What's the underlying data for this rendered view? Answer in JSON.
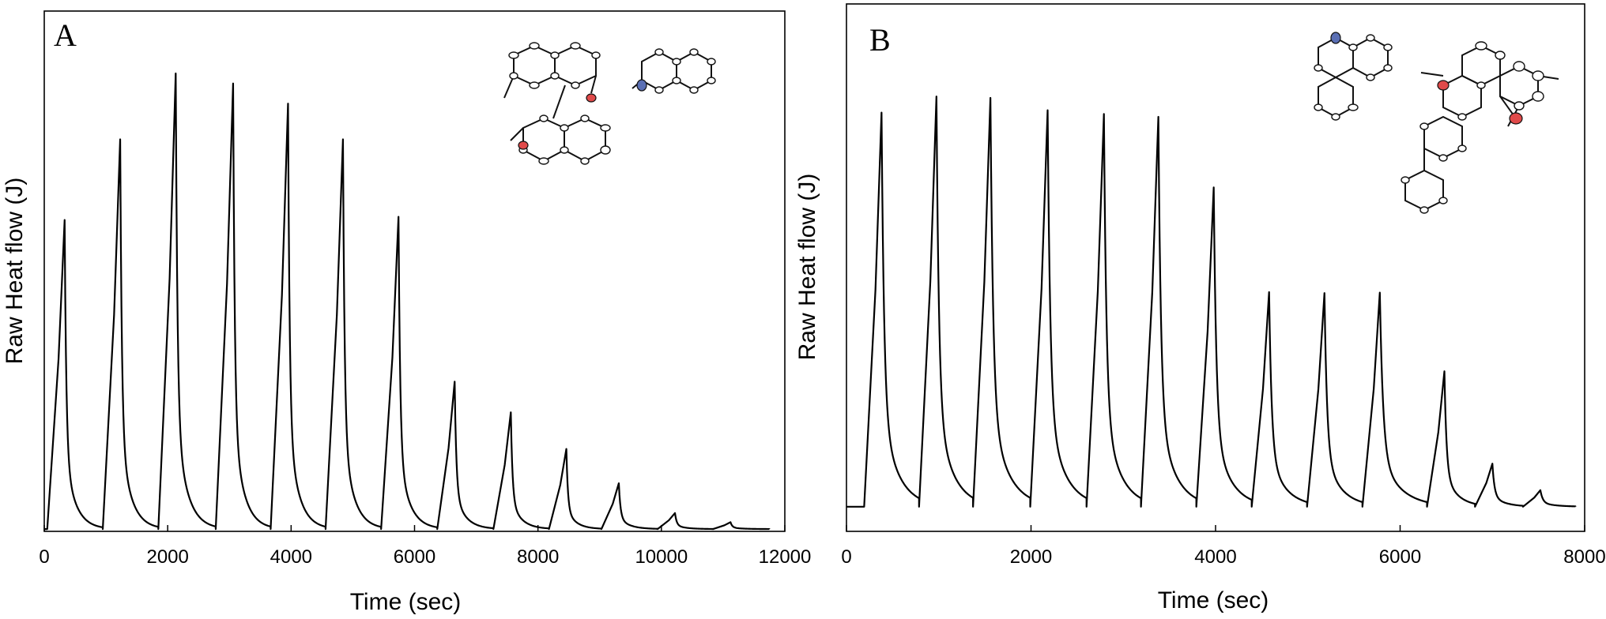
{
  "chart_data": [
    {
      "type": "line",
      "panel": "A",
      "xlabel": "Time (sec)",
      "ylabel": "Raw Heat flow (J)",
      "xlim": [
        0,
        12000
      ],
      "ylim": [
        0,
        1
      ],
      "y_ticks_shown": false,
      "x_ticks": [
        "0",
        "2000",
        "4000",
        "6000",
        "8000",
        "10000",
        "12000"
      ],
      "x_tick_values": [
        0,
        2000,
        4000,
        6000,
        8000,
        10000,
        12000
      ],
      "grid": false,
      "legend": "none",
      "line_color": "#000000",
      "series": [
        {
          "name": "",
          "baseline": 0.005,
          "x_end": 11750,
          "peaks": [
            {
              "x": 330,
              "y": 0.68
            },
            {
              "x": 1230,
              "y": 0.856
            },
            {
              "x": 2130,
              "y": 1.0
            },
            {
              "x": 3060,
              "y": 0.978
            },
            {
              "x": 3950,
              "y": 0.934
            },
            {
              "x": 4840,
              "y": 0.856
            },
            {
              "x": 5740,
              "y": 0.687
            },
            {
              "x": 6650,
              "y": 0.327
            },
            {
              "x": 7560,
              "y": 0.26
            },
            {
              "x": 8460,
              "y": 0.18
            },
            {
              "x": 9310,
              "y": 0.105
            },
            {
              "x": 10220,
              "y": 0.04
            },
            {
              "x": 11120,
              "y": 0.02
            }
          ]
        }
      ],
      "inset": {
        "type": "crystal-structure",
        "atoms": {
          "O": "#e04a4a",
          "N": "#5a6fb4"
        }
      }
    },
    {
      "type": "line",
      "panel": "B",
      "xlabel": "Time (sec)",
      "ylabel": "Raw Heat flow (J)",
      "xlim": [
        0,
        8000
      ],
      "ylim": [
        0,
        1
      ],
      "y_ticks_shown": false,
      "x_ticks": [
        "0",
        "2000",
        "4000",
        "6000",
        "8000"
      ],
      "x_tick_values": [
        0,
        2000,
        4000,
        6000,
        8000
      ],
      "grid": false,
      "legend": "none",
      "line_color": "#000000",
      "series": [
        {
          "name": "",
          "baseline": 0.052,
          "x_end": 7900,
          "peaks": [
            {
              "x": 380,
              "y": 0.884
            },
            {
              "x": 975,
              "y": 0.918
            },
            {
              "x": 1560,
              "y": 0.915
            },
            {
              "x": 2180,
              "y": 0.889
            },
            {
              "x": 2790,
              "y": 0.881
            },
            {
              "x": 3380,
              "y": 0.875
            },
            {
              "x": 3980,
              "y": 0.726
            },
            {
              "x": 4580,
              "y": 0.505
            },
            {
              "x": 5180,
              "y": 0.503
            },
            {
              "x": 5780,
              "y": 0.504
            },
            {
              "x": 6480,
              "y": 0.338
            },
            {
              "x": 7000,
              "y": 0.143
            },
            {
              "x": 7520,
              "y": 0.087
            }
          ]
        }
      ],
      "inset": {
        "type": "crystal-structure",
        "atoms": {
          "O": "#e04a4a",
          "N": "#5a6fb4"
        }
      }
    }
  ]
}
